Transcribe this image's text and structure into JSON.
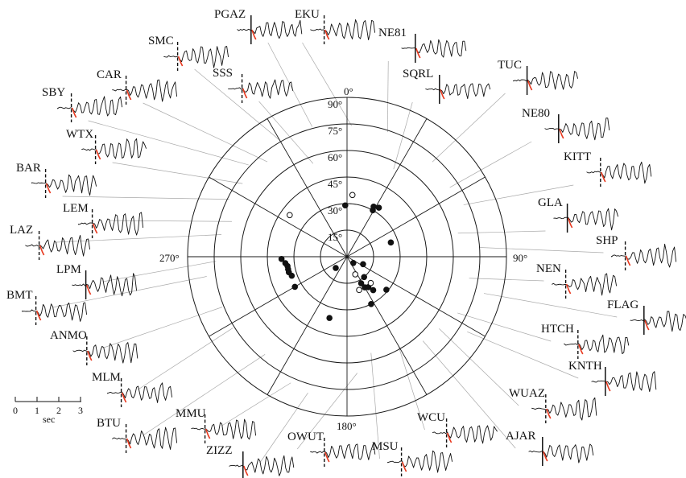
{
  "diagram": {
    "ring_labels": [
      "15°",
      "30°",
      "45°",
      "60°",
      "75°",
      "90°"
    ],
    "azimuth_labels": {
      "north": "0°",
      "east": "90°",
      "south": "180°",
      "west": "270°"
    },
    "spoke_azimuths": [
      0,
      30,
      60,
      90,
      120,
      150,
      180,
      210,
      240,
      270,
      300,
      330
    ],
    "scale_bar": {
      "ticks": [
        "0",
        "1",
        "2",
        "3"
      ],
      "unit": "sec"
    },
    "colors": {
      "ink": "#111111",
      "pick": "#e8391f",
      "leader": "#a9a9a9"
    },
    "points": [
      {
        "az": 358,
        "inc": 29,
        "filled": true
      },
      {
        "az": 5,
        "inc": 35,
        "filled": false
      },
      {
        "az": 28,
        "inc": 32,
        "filled": true
      },
      {
        "az": 29,
        "inc": 30,
        "filled": true
      },
      {
        "az": 33,
        "inc": 33,
        "filled": true
      },
      {
        "az": 72,
        "inc": 26,
        "filled": true
      },
      {
        "az": 306,
        "inc": 40,
        "filled": false
      },
      {
        "az": 268,
        "inc": 37,
        "filled": true
      },
      {
        "az": 264,
        "inc": 35,
        "filled": true
      },
      {
        "az": 261,
        "inc": 34,
        "filled": true
      },
      {
        "az": 258,
        "inc": 34,
        "filled": true
      },
      {
        "az": 255,
        "inc": 34,
        "filled": true
      },
      {
        "az": 251,
        "inc": 33,
        "filled": true
      },
      {
        "az": 240,
        "inc": 34,
        "filled": true
      },
      {
        "az": 225,
        "inc": 9,
        "filled": true
      },
      {
        "az": 135,
        "inc": 5,
        "filled": true
      },
      {
        "az": 115,
        "inc": 10,
        "filled": true
      },
      {
        "az": 140,
        "inc": 15,
        "filled": true
      },
      {
        "az": 155,
        "inc": 11,
        "filled": false
      },
      {
        "az": 152,
        "inc": 17,
        "filled": true
      },
      {
        "az": 150,
        "inc": 20,
        "filled": true
      },
      {
        "az": 145,
        "inc": 21,
        "filled": true
      },
      {
        "az": 160,
        "inc": 20,
        "filled": false
      },
      {
        "az": 138,
        "inc": 20,
        "filled": false
      },
      {
        "az": 142,
        "inc": 24,
        "filled": true
      },
      {
        "az": 130,
        "inc": 29,
        "filled": true
      },
      {
        "az": 153,
        "inc": 30,
        "filled": true
      },
      {
        "az": 196,
        "inc": 36,
        "filled": true
      }
    ],
    "stations": [
      {
        "name": "PGAZ",
        "az": 345,
        "inc": 76,
        "marker": "solid"
      },
      {
        "name": "EKU",
        "az": 2,
        "inc": 74,
        "marker": "dash"
      },
      {
        "name": "NE81",
        "az": 18,
        "inc": 74,
        "marker": "solid"
      },
      {
        "name": "SQRL",
        "az": 28,
        "inc": 56,
        "marker": "solid"
      },
      {
        "name": "TUC",
        "az": 42,
        "inc": 72,
        "marker": "solid"
      },
      {
        "name": "NE80",
        "az": 56,
        "inc": 70,
        "marker": "solid"
      },
      {
        "name": "KITT",
        "az": 66,
        "inc": 72,
        "marker": "dash"
      },
      {
        "name": "GLA",
        "az": 78,
        "inc": 64,
        "marker": "solid"
      },
      {
        "name": "SHP",
        "az": 86,
        "inc": 75,
        "marker": "dash"
      },
      {
        "name": "NEN",
        "az": 100,
        "inc": 70,
        "marker": "dash"
      },
      {
        "name": "FLAG",
        "az": 105,
        "inc": 80,
        "marker": "solid"
      },
      {
        "name": "HTCH",
        "az": 117,
        "inc": 70,
        "marker": "dash"
      },
      {
        "name": "KNTH",
        "az": 122,
        "inc": 80,
        "marker": "solid"
      },
      {
        "name": "WUAZ",
        "az": 128,
        "inc": 66,
        "marker": "dash"
      },
      {
        "name": "AJAR",
        "az": 138,
        "inc": 64,
        "marker": "solid"
      },
      {
        "name": "WCU",
        "az": 150,
        "inc": 58,
        "marker": "dash"
      },
      {
        "name": "MSU",
        "az": 166,
        "inc": 56,
        "marker": "dash"
      },
      {
        "name": "OWUT",
        "az": 175,
        "inc": 66,
        "marker": "dash"
      },
      {
        "name": "ZIZZ",
        "az": 196,
        "inc": 80,
        "marker": "solid"
      },
      {
        "name": "MMU",
        "az": 204,
        "inc": 78,
        "marker": "dash"
      },
      {
        "name": "BTU",
        "az": 220,
        "inc": 72,
        "marker": "dash"
      },
      {
        "name": "MLM",
        "az": 238,
        "inc": 76,
        "marker": "dash"
      },
      {
        "name": "ANMO",
        "az": 248,
        "inc": 76,
        "marker": "dash"
      },
      {
        "name": "BMT",
        "az": 262,
        "inc": 80,
        "marker": "dash"
      },
      {
        "name": "LPM",
        "az": 268,
        "inc": 74,
        "marker": "solid"
      },
      {
        "name": "LAZ",
        "az": 280,
        "inc": 72,
        "marker": "dash"
      },
      {
        "name": "LEM",
        "az": 287,
        "inc": 68,
        "marker": "dash"
      },
      {
        "name": "BAR",
        "az": 296,
        "inc": 74,
        "marker": "dash"
      },
      {
        "name": "WTX",
        "az": 305,
        "inc": 72,
        "marker": "dash"
      },
      {
        "name": "SBY",
        "az": 313,
        "inc": 76,
        "marker": "dash"
      },
      {
        "name": "CAR",
        "az": 320,
        "inc": 70,
        "marker": "dash"
      },
      {
        "name": "SMC",
        "az": 330,
        "inc": 76,
        "marker": "dash"
      },
      {
        "name": "SSS",
        "az": 340,
        "inc": 56,
        "marker": "dash"
      }
    ]
  }
}
